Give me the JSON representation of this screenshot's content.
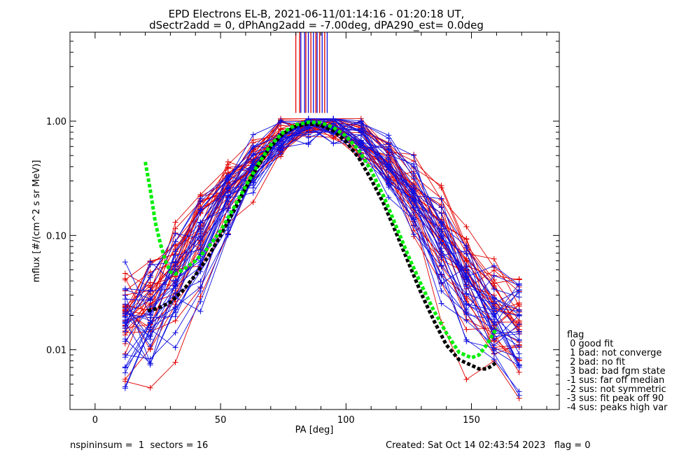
{
  "chart_data": {
    "type": "line",
    "title": "EPD Electrons EL-B, 2021-06-11/01:14:16 - 01:20:18 UT,",
    "subtitle": "dSectr2add = 0, dPhAng2add = -7.00deg, dPA290_est=   0.0deg",
    "xlabel": "PA [deg]",
    "ylabel": "mflux [#/(cm^2 s sr MeV)]",
    "xlim": [
      -10,
      185
    ],
    "ylim": [
      0.003,
      6
    ],
    "yscale": "log",
    "grid": false,
    "x_ticks": [
      "0",
      "50",
      "100",
      "150"
    ],
    "y_ticks": [
      {
        "value": 1.0,
        "label": "1.00"
      },
      {
        "value": 0.1,
        "label": "0.10"
      },
      {
        "value": 0.01,
        "label": "0.01"
      }
    ],
    "pa_bins": [
      12,
      22,
      32,
      42,
      53,
      63,
      74,
      85,
      95,
      106,
      117,
      127,
      138,
      148,
      159,
      169
    ],
    "spin_markers": {
      "red_x": [
        80,
        81.5,
        84,
        86,
        88,
        89.5,
        91.5
      ],
      "blue_x": [
        82,
        83.5,
        85,
        87,
        88.5,
        90.5,
        92.5
      ],
      "y_bottom": 1.18
    },
    "fit_green": {
      "x": [
        20,
        22,
        24,
        26,
        28,
        30,
        32,
        35,
        40,
        45,
        50,
        55,
        60,
        65,
        70,
        75,
        80,
        85,
        90,
        95,
        100,
        105,
        110,
        115,
        120,
        125,
        130,
        135,
        140,
        145,
        150,
        153,
        156,
        158,
        160
      ],
      "y": [
        0.44,
        0.25,
        0.13,
        0.085,
        0.06,
        0.048,
        0.046,
        0.05,
        0.06,
        0.078,
        0.11,
        0.17,
        0.27,
        0.42,
        0.62,
        0.8,
        0.93,
        0.98,
        0.97,
        0.88,
        0.74,
        0.56,
        0.37,
        0.22,
        0.12,
        0.065,
        0.037,
        0.022,
        0.014,
        0.0095,
        0.0085,
        0.009,
        0.011,
        0.013,
        0.0155
      ]
    },
    "fit_black": {
      "x": [
        21,
        25,
        30,
        35,
        40,
        45,
        50,
        55,
        60,
        65,
        70,
        75,
        80,
        85,
        90,
        95,
        100,
        105,
        110,
        115,
        120,
        125,
        130,
        135,
        140,
        145,
        150,
        153,
        156,
        158,
        160
      ],
      "y": [
        0.022,
        0.023,
        0.026,
        0.033,
        0.045,
        0.065,
        0.1,
        0.16,
        0.26,
        0.41,
        0.6,
        0.78,
        0.9,
        0.95,
        0.92,
        0.82,
        0.66,
        0.48,
        0.31,
        0.19,
        0.105,
        0.057,
        0.031,
        0.018,
        0.011,
        0.0082,
        0.0073,
        0.0068,
        0.0068,
        0.0072,
        0.0078
      ]
    },
    "legend": {
      "placement": "right",
      "title": "flag",
      "entries": [
        " 0 good fit",
        " 1 bad: not converge",
        " 2 bad: no fit",
        " 3 bad: bad fgm state",
        "-1 sus: far off median",
        "-2 sus: not symmetric",
        "-3 sus: fit peak off 90",
        "-4 sus: peaks high var"
      ]
    },
    "footer": {
      "left": "nspininsum =  1  sectors = 16",
      "right": "Created: Sat Oct 14 02:43:54 2023   flag = 0"
    },
    "colors": {
      "red": "#e00000",
      "blue": "#1010e0",
      "green": "#00ee00",
      "black": "#000000"
    }
  }
}
